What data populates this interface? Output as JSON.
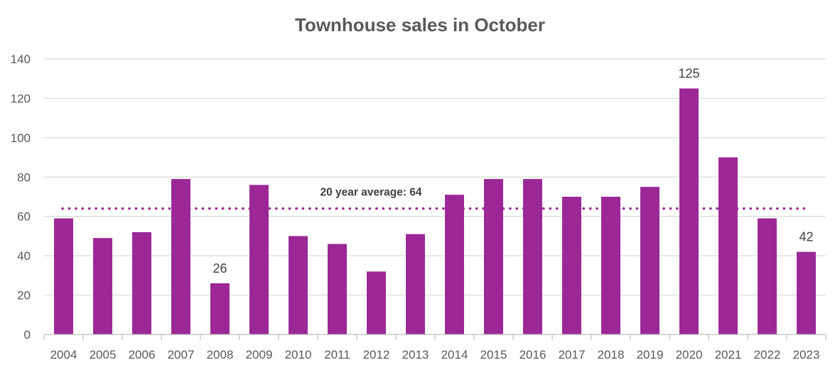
{
  "chart_data": {
    "type": "bar",
    "title": "Townhouse sales in October",
    "xlabel": "",
    "ylabel": "",
    "categories": [
      "2004",
      "2005",
      "2006",
      "2007",
      "2008",
      "2009",
      "2010",
      "2011",
      "2012",
      "2013",
      "2014",
      "2015",
      "2016",
      "2017",
      "2018",
      "2019",
      "2020",
      "2021",
      "2022",
      "2023"
    ],
    "values": [
      59,
      49,
      52,
      79,
      26,
      76,
      50,
      46,
      32,
      51,
      71,
      79,
      79,
      70,
      70,
      75,
      125,
      90,
      59,
      42
    ],
    "ylim": [
      0,
      140
    ],
    "y_ticks": [
      0,
      20,
      40,
      60,
      80,
      100,
      120,
      140
    ],
    "grid": true,
    "legend": "none",
    "bar_color": "#9B2896",
    "data_labels": [
      {
        "category": "2008",
        "text": "26"
      },
      {
        "category": "2020",
        "text": "125"
      },
      {
        "category": "2023",
        "text": "42"
      }
    ],
    "average": {
      "value": 64,
      "label": "20 year average: 64",
      "color": "#9B2896",
      "style": "dotted"
    }
  }
}
